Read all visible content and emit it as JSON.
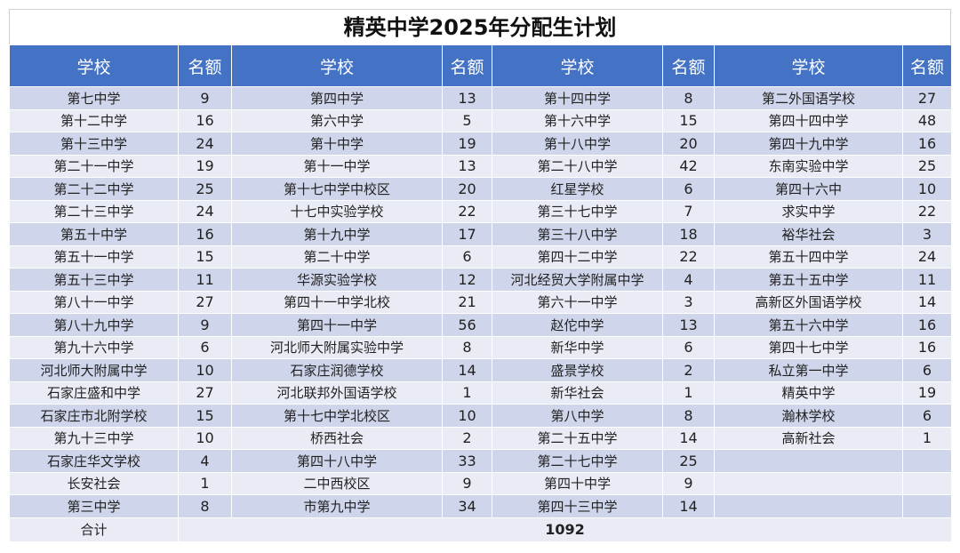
{
  "title": "精英中学2025年分配生计划",
  "headers": [
    "学校",
    "名额",
    "学校",
    "名额",
    "学校",
    "名额",
    "学校",
    "名额"
  ],
  "groups": [
    [
      [
        "第七中学",
        9
      ],
      [
        "第十二中学",
        16
      ],
      [
        "第十三中学",
        24
      ],
      [
        "第二十一中学",
        19
      ],
      [
        "第二十二中学",
        25
      ],
      [
        "第二十三中学",
        24
      ],
      [
        "第五十中学",
        16
      ],
      [
        "第五十一中学",
        15
      ],
      [
        "第五十三中学",
        11
      ],
      [
        "第八十一中学",
        27
      ],
      [
        "第八十九中学",
        9
      ],
      [
        "第九十六中学",
        6
      ],
      [
        "河北师大附属中学",
        10
      ],
      [
        "石家庄盛和中学",
        27
      ],
      [
        "石家庄市北附学校",
        15
      ],
      [
        "第九十三中学",
        10
      ],
      [
        "石家庄华文学校",
        4
      ],
      [
        "长安社会",
        1
      ],
      [
        "第三中学",
        8
      ]
    ],
    [
      [
        "第四中学",
        13
      ],
      [
        "第六中学",
        5
      ],
      [
        "第十中学",
        19
      ],
      [
        "第十一中学",
        13
      ],
      [
        "第十七中学中校区",
        20
      ],
      [
        "十七中实验学校",
        22
      ],
      [
        "第十九中学",
        17
      ],
      [
        "第二十中学",
        6
      ],
      [
        "华源实验学校",
        12
      ],
      [
        "第四十一中学北校",
        21
      ],
      [
        "第四十一中学",
        56
      ],
      [
        "河北师大附属实验中学",
        8
      ],
      [
        "石家庄润德学校",
        14
      ],
      [
        "河北联邦外国语学校",
        1
      ],
      [
        "第十七中学北校区",
        10
      ],
      [
        "桥西社会",
        2
      ],
      [
        "第四十八中学",
        33
      ],
      [
        "二中西校区",
        9
      ],
      [
        "市第九中学",
        34
      ]
    ],
    [
      [
        "第十四中学",
        8
      ],
      [
        "第十六中学",
        15
      ],
      [
        "第十八中学",
        20
      ],
      [
        "第二十八中学",
        42
      ],
      [
        "红星学校",
        6
      ],
      [
        "第三十七中学",
        7
      ],
      [
        "第三十八中学",
        18
      ],
      [
        "第四十二中学",
        22
      ],
      [
        "河北经贸大学附属中学",
        4
      ],
      [
        "第六十一中学",
        3
      ],
      [
        "赵佗中学",
        13
      ],
      [
        "新华中学",
        6
      ],
      [
        "盛景学校",
        2
      ],
      [
        "新华社会",
        1
      ],
      [
        "第八中学",
        8
      ],
      [
        "第二十五中学",
        14
      ],
      [
        "第二十七中学",
        25
      ],
      [
        "第四十中学",
        9
      ],
      [
        "第四十三中学",
        14
      ]
    ],
    [
      [
        "第二外国语学校",
        27
      ],
      [
        "第四十四中学",
        48
      ],
      [
        "第四十九中学",
        16
      ],
      [
        "东南实验中学",
        25
      ],
      [
        "第四十六中",
        10
      ],
      [
        "求实中学",
        22
      ],
      [
        "裕华社会",
        3
      ],
      [
        "第五十四中学",
        24
      ],
      [
        "第五十五中学",
        11
      ],
      [
        "高新区外国语学校",
        14
      ],
      [
        "第五十六中学",
        16
      ],
      [
        "第四十七中学",
        16
      ],
      [
        "私立第一中学",
        6
      ],
      [
        "精英中学",
        19
      ],
      [
        "瀚林学校",
        6
      ],
      [
        "高新社会",
        1
      ]
    ]
  ],
  "total": {
    "label": "合计",
    "value": 1092
  }
}
